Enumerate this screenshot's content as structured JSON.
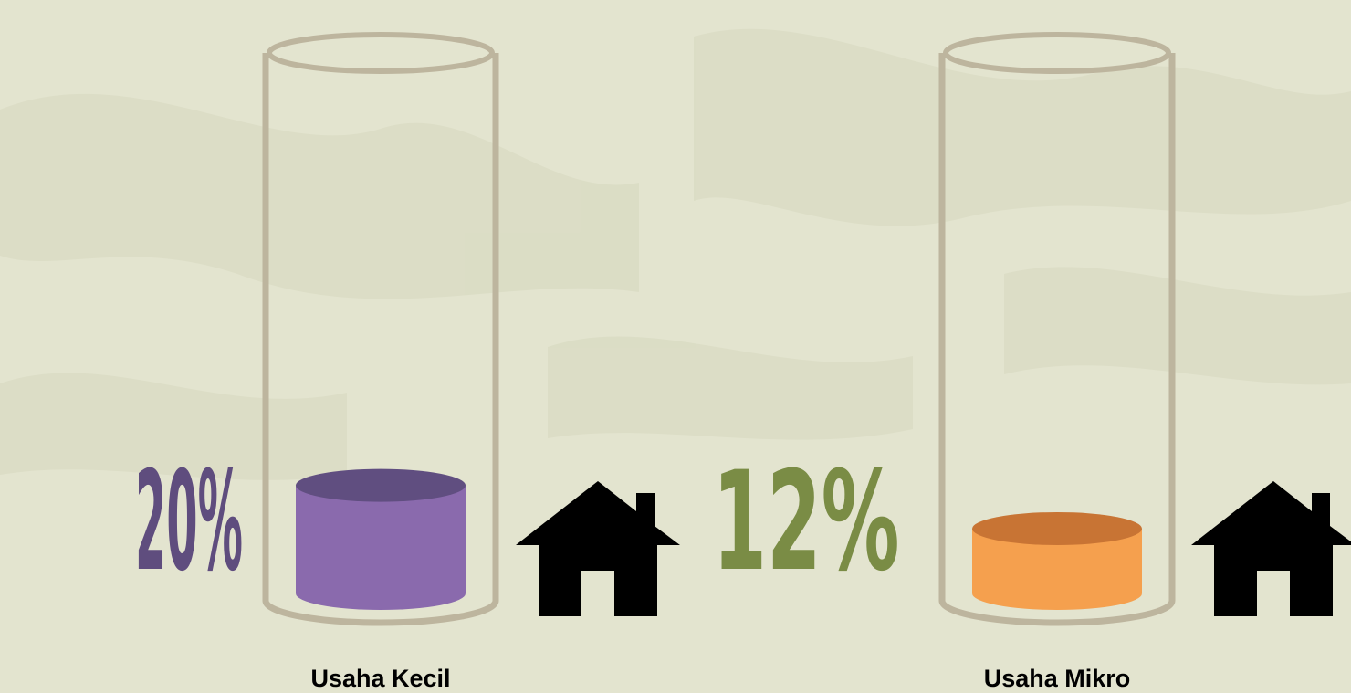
{
  "chart_data": {
    "type": "cylinder",
    "categories": [
      "Usaha Kecil",
      "Usaha Mikro"
    ],
    "values": [
      20,
      12
    ],
    "value_labels": [
      "20%",
      "12%"
    ],
    "colors": [
      "#8a6aad",
      "#f5a04e"
    ],
    "top_colors": [
      "#604e80",
      "#c87434"
    ],
    "label_colors": [
      "#5f4d7e",
      "#7a8c45"
    ]
  }
}
